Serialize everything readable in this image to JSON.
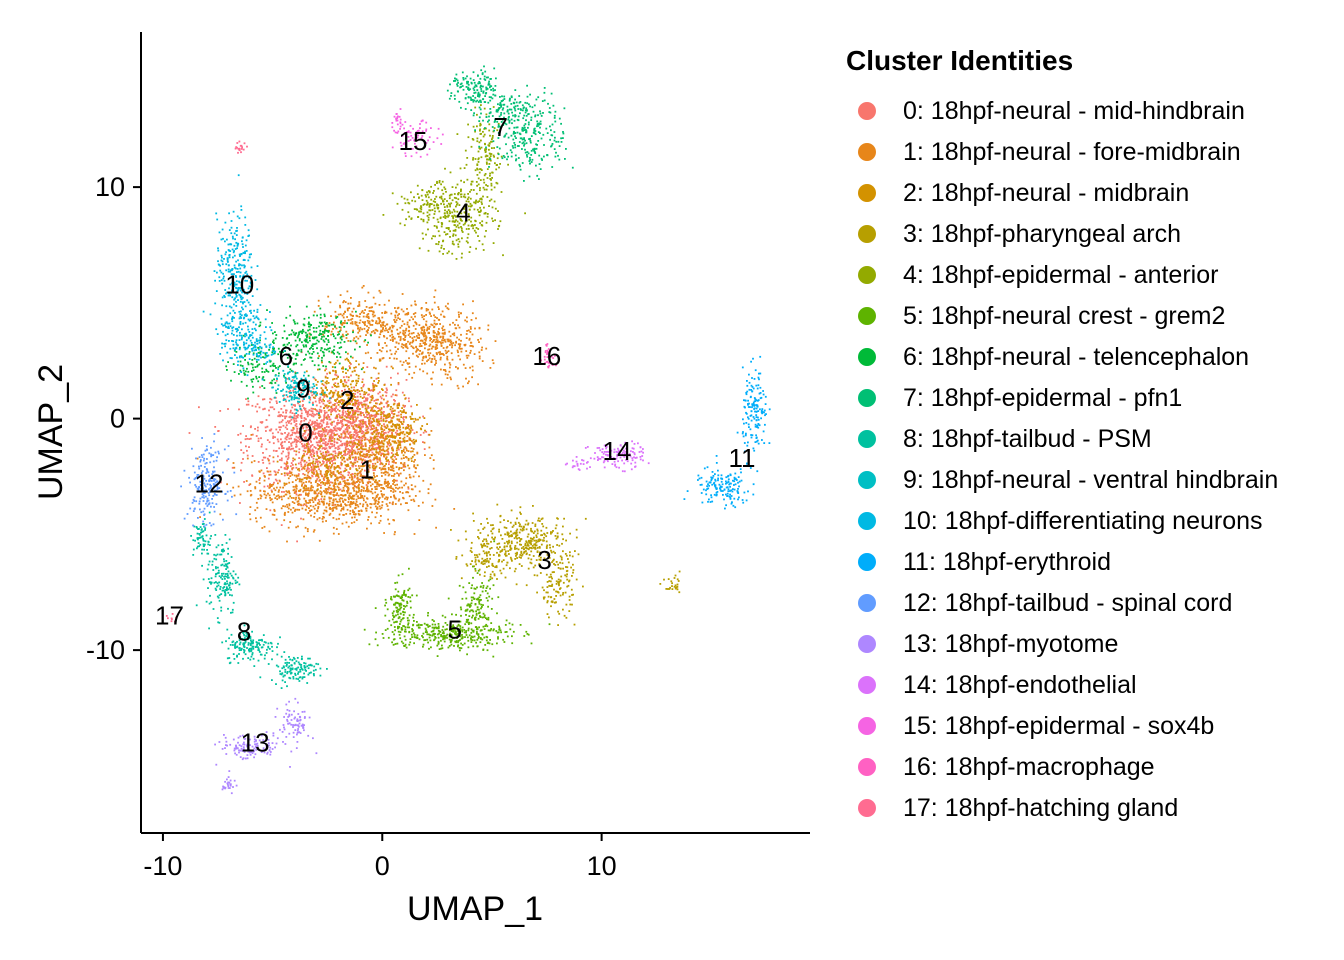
{
  "chart_data": {
    "type": "scatter",
    "xlabel": "UMAP_1",
    "ylabel": "UMAP_2",
    "xlim": [
      -11,
      19.5
    ],
    "ylim": [
      -17.9,
      16.7
    ],
    "x_ticks": [
      -10,
      0,
      10
    ],
    "x_tick_labels": [
      "-10",
      "0",
      "10"
    ],
    "y_ticks": [
      -10,
      0,
      10
    ],
    "y_tick_labels": [
      "-10",
      "0",
      "10"
    ],
    "grid": false,
    "legend": {
      "title": "Cluster Identities",
      "position": "right"
    },
    "clusters": [
      {
        "id": "0",
        "name": "0: 18hpf-neural - mid-hindbrain",
        "color": "#F8766D",
        "label_pos": [
          -3.5,
          -0.6
        ],
        "blobs": [
          [
            -3.0,
            -0.8,
            2.2,
            1.6,
            1100
          ],
          [
            -1.0,
            -0.3,
            1.5,
            1.4,
            500
          ]
        ]
      },
      {
        "id": "1",
        "name": "1: 18hpf-neural - fore-midbrain",
        "color": "#E7861A",
        "label_pos": [
          -0.7,
          -2.2
        ],
        "blobs": [
          [
            -2.5,
            -3.2,
            2.5,
            1.0,
            800
          ],
          [
            0.0,
            -1.5,
            1.3,
            1.6,
            500
          ],
          [
            1.5,
            3.6,
            1.6,
            1.0,
            350
          ],
          [
            -1.0,
            4.2,
            1.2,
            0.8,
            200
          ],
          [
            3.0,
            3.0,
            1.2,
            1.0,
            200
          ]
        ]
      },
      {
        "id": "2",
        "name": "2: 18hpf-neural - midbrain",
        "color": "#D39200",
        "label_pos": [
          -1.6,
          0.8
        ],
        "blobs": [
          [
            -1.6,
            1.2,
            1.2,
            1.0,
            250
          ],
          [
            0.5,
            -0.5,
            1.0,
            1.0,
            200
          ],
          [
            -2.5,
            -2.0,
            1.5,
            0.8,
            150
          ]
        ]
      },
      {
        "id": "3",
        "name": "3: 18hpf-pharyngeal arch",
        "color": "#B79F00",
        "label_pos": [
          7.4,
          -6.1
        ],
        "blobs": [
          [
            6.5,
            -5.3,
            1.6,
            0.8,
            350
          ],
          [
            8.0,
            -7.2,
            0.6,
            1.0,
            120
          ],
          [
            4.8,
            -6.2,
            0.8,
            0.5,
            80
          ],
          [
            13.3,
            -7.3,
            0.3,
            0.3,
            25
          ]
        ]
      },
      {
        "id": "4",
        "name": "4: 18hpf-epidermal - anterior",
        "color": "#93AA00",
        "label_pos": [
          3.7,
          8.9
        ],
        "blobs": [
          [
            3.5,
            8.8,
            1.2,
            1.2,
            300
          ],
          [
            4.7,
            11.2,
            0.6,
            1.3,
            150
          ],
          [
            1.8,
            9.2,
            0.8,
            0.6,
            80
          ]
        ]
      },
      {
        "id": "5",
        "name": "5: 18hpf-neural crest - grem2",
        "color": "#5EB300",
        "label_pos": [
          3.3,
          -9.1
        ],
        "blobs": [
          [
            3.0,
            -9.3,
            2.0,
            0.5,
            350
          ],
          [
            0.8,
            -8.2,
            0.4,
            0.9,
            120
          ],
          [
            4.3,
            -8.0,
            0.6,
            0.9,
            120
          ]
        ]
      },
      {
        "id": "6",
        "name": "6: 18hpf-neural - telencephalon",
        "color": "#00BA38",
        "label_pos": [
          -4.4,
          2.7
        ],
        "blobs": [
          [
            -3.2,
            3.4,
            1.4,
            0.8,
            250
          ],
          [
            -5.5,
            2.3,
            1.0,
            0.8,
            120
          ]
        ]
      },
      {
        "id": "7",
        "name": "7: 18hpf-epidermal - pfn1",
        "color": "#00BF74",
        "label_pos": [
          5.4,
          12.6
        ],
        "blobs": [
          [
            6.7,
            12.3,
            1.2,
            1.2,
            250
          ],
          [
            4.3,
            14.2,
            0.8,
            0.6,
            150
          ],
          [
            5.5,
            13.2,
            0.8,
            0.5,
            100
          ]
        ]
      },
      {
        "id": "8",
        "name": "8: 18hpf-tailbud - PSM",
        "color": "#00C19F",
        "label_pos": [
          -6.3,
          -9.2
        ],
        "blobs": [
          [
            -7.3,
            -6.8,
            0.5,
            1.2,
            150
          ],
          [
            -6.0,
            -9.8,
            0.8,
            0.5,
            150
          ],
          [
            -4.0,
            -10.8,
            0.8,
            0.4,
            120
          ],
          [
            -8.2,
            -5.2,
            0.3,
            0.6,
            60
          ]
        ]
      },
      {
        "id": "9",
        "name": "9: 18hpf-neural - ventral hindbrain",
        "color": "#00BFC4",
        "label_pos": [
          -3.6,
          1.3
        ],
        "blobs": [
          [
            -4.0,
            1.3,
            0.7,
            0.6,
            150
          ]
        ]
      },
      {
        "id": "10",
        "name": "10: 18hpf-differentiating neurons",
        "color": "#00B9E3",
        "label_pos": [
          -6.5,
          5.8
        ],
        "blobs": [
          [
            -6.7,
            6.5,
            0.6,
            1.6,
            250
          ],
          [
            -6.5,
            4.0,
            0.8,
            1.0,
            150
          ],
          [
            -5.8,
            3.0,
            0.8,
            0.6,
            80
          ]
        ]
      },
      {
        "id": "11",
        "name": "11: 18hpf-erythroid",
        "color": "#00ADFA",
        "label_pos": [
          16.4,
          -1.7
        ],
        "blobs": [
          [
            17.0,
            0.2,
            0.4,
            1.3,
            150
          ],
          [
            15.5,
            -3.0,
            0.9,
            0.6,
            150
          ]
        ]
      },
      {
        "id": "12",
        "name": "12: 18hpf-tailbud - spinal cord",
        "color": "#619CFF",
        "label_pos": [
          -7.9,
          -2.8
        ],
        "blobs": [
          [
            -8.0,
            -2.8,
            0.6,
            1.1,
            200
          ]
        ]
      },
      {
        "id": "13",
        "name": "13: 18hpf-myotome",
        "color": "#AE87FF",
        "label_pos": [
          -5.8,
          -14.0
        ],
        "blobs": [
          [
            -6.0,
            -14.2,
            1.0,
            0.4,
            120
          ],
          [
            -4.0,
            -13.2,
            0.5,
            0.6,
            80
          ],
          [
            -7.0,
            -15.8,
            0.2,
            0.3,
            25
          ]
        ]
      },
      {
        "id": "14",
        "name": "14: 18hpf-endothelial",
        "color": "#DB72FB",
        "label_pos": [
          10.7,
          -1.4
        ],
        "blobs": [
          [
            10.7,
            -1.6,
            0.9,
            0.4,
            120
          ],
          [
            9.0,
            -2.0,
            0.4,
            0.2,
            20
          ]
        ]
      },
      {
        "id": "15",
        "name": "15: 18hpf-epidermal - sox4b",
        "color": "#F564E3",
        "label_pos": [
          1.4,
          12.0
        ],
        "blobs": [
          [
            1.5,
            12.1,
            0.7,
            0.5,
            70
          ],
          [
            0.7,
            13.0,
            0.2,
            0.3,
            20
          ]
        ]
      },
      {
        "id": "16",
        "name": "16: 18hpf-macrophage",
        "color": "#FF61C3",
        "label_pos": [
          7.5,
          2.7
        ],
        "blobs": [
          [
            7.6,
            2.7,
            0.2,
            0.4,
            30
          ]
        ]
      },
      {
        "id": "17",
        "name": "17: 18hpf-hatching gland",
        "color": "#FF6C91",
        "label_pos": [
          -9.7,
          -8.5
        ],
        "blobs": [
          [
            -9.6,
            -8.6,
            0.2,
            0.2,
            8
          ],
          [
            -6.5,
            11.7,
            0.2,
            0.2,
            18
          ]
        ]
      }
    ]
  }
}
